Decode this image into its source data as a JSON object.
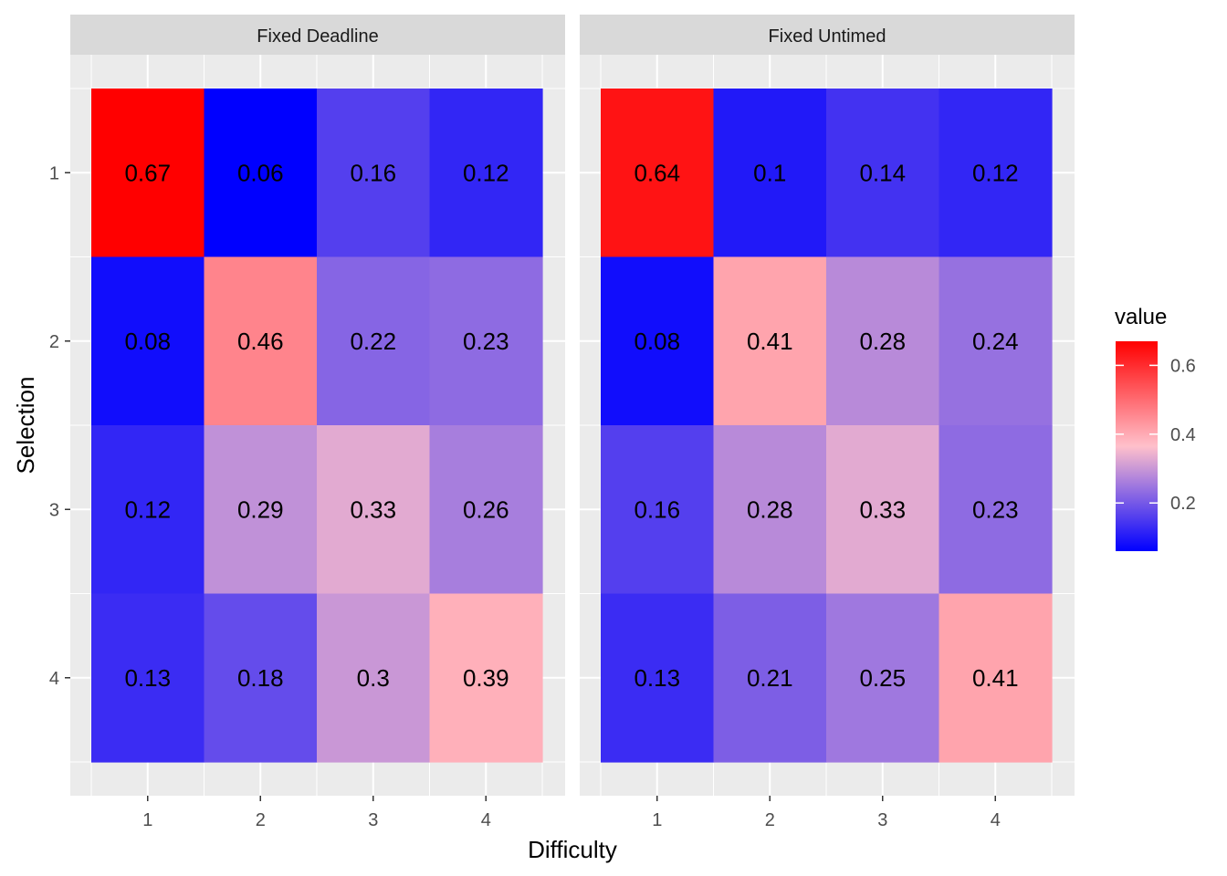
{
  "chart_data": {
    "type": "heatmap",
    "xlabel": "Difficulty",
    "ylabel": "Selection",
    "x_categories": [
      "1",
      "2",
      "3",
      "4"
    ],
    "y_categories": [
      "1",
      "2",
      "3",
      "4"
    ],
    "panels": [
      {
        "name": "Fixed Deadline",
        "values": [
          [
            0.67,
            0.06,
            0.16,
            0.12
          ],
          [
            0.08,
            0.46,
            0.22,
            0.23
          ],
          [
            0.12,
            0.29,
            0.33,
            0.26
          ],
          [
            0.13,
            0.18,
            0.3,
            0.39
          ]
        ],
        "labels": [
          [
            "0.67",
            "0.06",
            "0.16",
            "0.12"
          ],
          [
            "0.08",
            "0.46",
            "0.22",
            "0.23"
          ],
          [
            "0.12",
            "0.29",
            "0.33",
            "0.26"
          ],
          [
            "0.13",
            "0.18",
            "0.3",
            "0.39"
          ]
        ]
      },
      {
        "name": "Fixed Untimed",
        "values": [
          [
            0.64,
            0.1,
            0.14,
            0.12
          ],
          [
            0.08,
            0.41,
            0.28,
            0.24
          ],
          [
            0.16,
            0.28,
            0.33,
            0.23
          ],
          [
            0.13,
            0.21,
            0.25,
            0.41
          ]
        ],
        "labels": [
          [
            "0.64",
            "0.1",
            "0.14",
            "0.12"
          ],
          [
            "0.08",
            "0.41",
            "0.28",
            "0.24"
          ],
          [
            "0.16",
            "0.28",
            "0.33",
            "0.23"
          ],
          [
            "0.13",
            "0.21",
            "0.25",
            "0.41"
          ]
        ]
      }
    ],
    "legend": {
      "title": "value",
      "ticks": [
        0.2,
        0.4,
        0.6
      ],
      "tick_labels": [
        "0.2",
        "0.4",
        "0.6"
      ],
      "range": [
        0.06,
        0.67
      ],
      "low_color": "#0000ff",
      "mid_color": "#ffc0cb",
      "high_color": "#ff0000",
      "placement": "right"
    },
    "grid": true,
    "panel_background": "#ebebeb",
    "strip_background": "#d9d9d9"
  }
}
